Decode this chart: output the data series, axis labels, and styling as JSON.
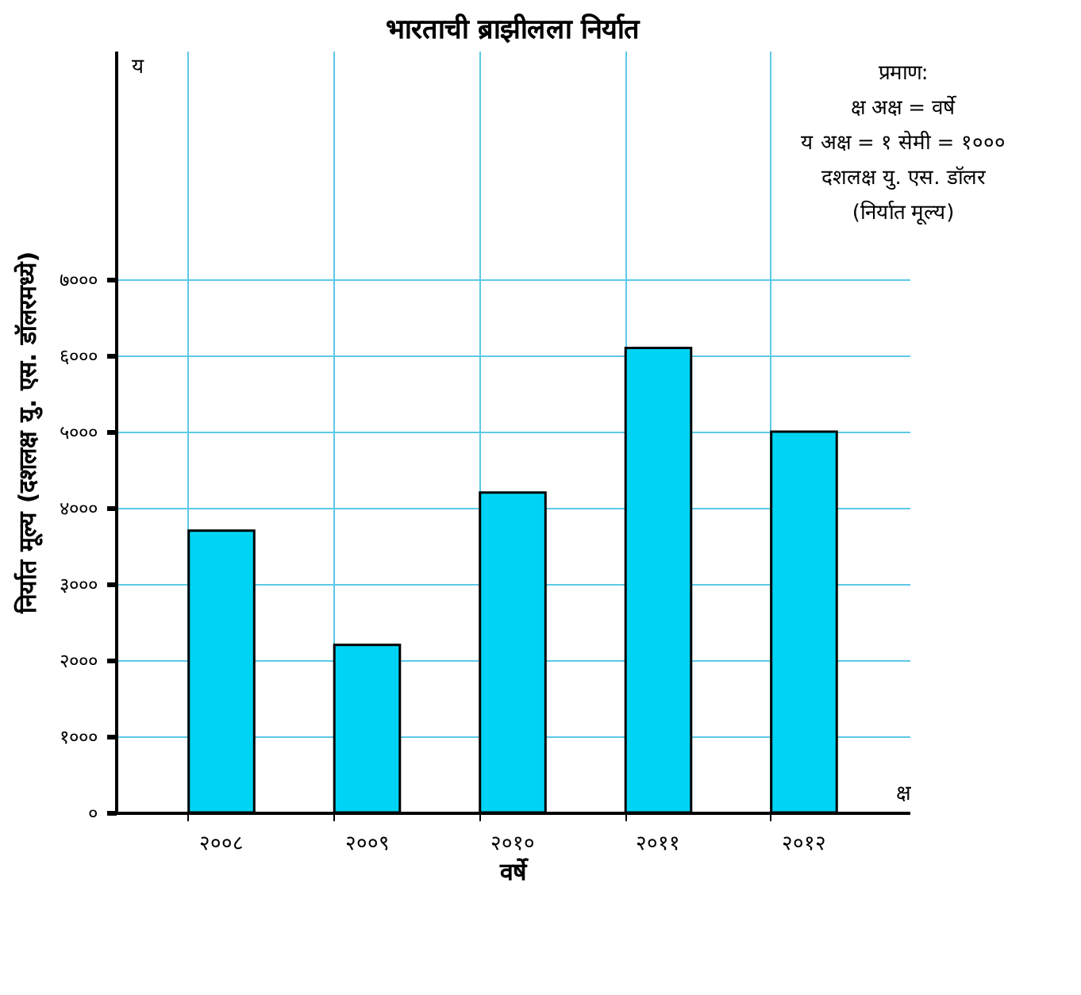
{
  "chart_data": {
    "type": "bar",
    "title": "भारताची ब्राझीलला निर्यात",
    "xlabel": "वर्षे",
    "ylabel": "निर्यात मूल्य (दशलक्ष यु. एस. डॉलरमध्ये)",
    "categories": [
      "२००८",
      "२००९",
      "२०१०",
      "२०११",
      "२०१२"
    ],
    "values": [
      3700,
      2200,
      4200,
      6100,
      5000
    ],
    "color": "#00d4f5",
    "ylim": [
      0,
      10000
    ],
    "yticks": [
      {
        "value": 0,
        "label": "०"
      },
      {
        "value": 1000,
        "label": "१०००"
      },
      {
        "value": 2000,
        "label": "२०००"
      },
      {
        "value": 3000,
        "label": "३०००"
      },
      {
        "value": 4000,
        "label": "४०००"
      },
      {
        "value": 5000,
        "label": "५०००"
      },
      {
        "value": 6000,
        "label": "६०००"
      },
      {
        "value": 7000,
        "label": "७०००"
      }
    ],
    "annotations": [
      "प्रमाण:",
      "क्ष अक्ष = वर्षे",
      "य अक्ष = १ सेमी = १०००",
      "दशलक्ष यु. एस. डॉलर",
      "(निर्यात मूल्य)",
      "य",
      "क्ष"
    ],
    "grid": true
  }
}
